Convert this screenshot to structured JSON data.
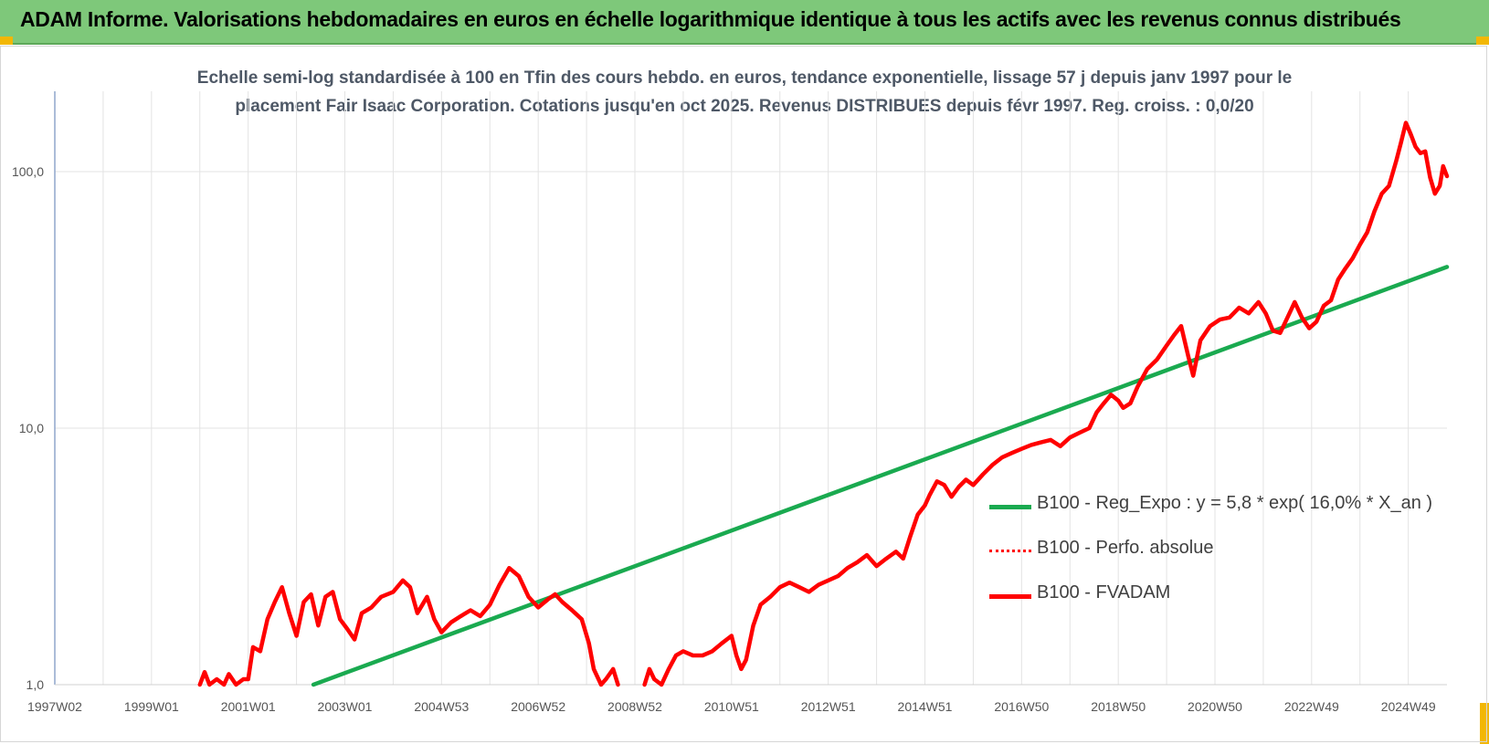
{
  "header": {
    "banner_title": "ADAM Informe. Valorisations hebdomadaires en euros en échelle logarithmique identique à tous les actifs avec les revenus connus distribués",
    "banner_color": "#7ec87a",
    "corner_color": "#f2b705"
  },
  "chart_data": {
    "type": "line",
    "title": "Echelle semi-log standardisée à 100 en Tfin des cours hebdo. en euros, tendance exponentielle, lissage 57 j depuis janv 1997 pour le placement Fair Isaac Corporation. Cotations jusqu'en oct 2025. Revenus DISTRIBUES depuis févr 1997. Reg. croiss. : 0,0/20",
    "title_lines": [
      "Echelle semi-log standardisée à 100 en Tfin des cours hebdo. en euros, tendance exponentielle, lissage 57 j depuis janv 1997 pour le",
      "placement Fair Isaac Corporation. Cotations jusqu'en oct 2025. Revenus DISTRIBUES depuis févr 1997. Reg. croiss. : 0,0/20"
    ],
    "xlabel": "",
    "ylabel": "",
    "y_scale": "log",
    "ylim": [
      1,
      190
    ],
    "xlim": [
      1997.0,
      2025.8
    ],
    "grid": true,
    "legend_position": "right-middle",
    "x_ticks": [
      {
        "label": "1997W02",
        "x": 1997.0
      },
      {
        "label": "1999W01",
        "x": 1999.0
      },
      {
        "label": "2001W01",
        "x": 2001.0
      },
      {
        "label": "2003W01",
        "x": 2003.0
      },
      {
        "label": "2004W53",
        "x": 2005.0
      },
      {
        "label": "2006W52",
        "x": 2007.0
      },
      {
        "label": "2008W52",
        "x": 2009.0
      },
      {
        "label": "2010W51",
        "x": 2011.0
      },
      {
        "label": "2012W51",
        "x": 2013.0
      },
      {
        "label": "2014W51",
        "x": 2015.0
      },
      {
        "label": "2016W50",
        "x": 2017.0
      },
      {
        "label": "2018W50",
        "x": 2019.0
      },
      {
        "label": "2020W50",
        "x": 2021.0
      },
      {
        "label": "2022W49",
        "x": 2023.0
      },
      {
        "label": "2024W49",
        "x": 2025.0
      }
    ],
    "y_ticks": [
      {
        "label": "1,0",
        "y": 1
      },
      {
        "label": "10,0",
        "y": 10
      },
      {
        "label": "100,0",
        "y": 100
      }
    ],
    "series": [
      {
        "name": "B100 - Reg_Expo : y = 5,8 * exp( 16,0% *  X_an )",
        "color": "#1aaa50",
        "style": "solid",
        "points": [
          [
            2002.35,
            1.0
          ],
          [
            2025.8,
            42.5
          ]
        ]
      },
      {
        "name": "B100 - Perfo. absolue",
        "color": "#ff0000",
        "style": "dotted",
        "points": []
      },
      {
        "name": "B100 - FVADAM",
        "color": "#ff0000",
        "style": "solid",
        "segments": [
          [
            [
              2000.0,
              1.0
            ],
            [
              2000.1,
              1.12
            ],
            [
              2000.2,
              1.0
            ],
            [
              2000.35,
              1.05
            ],
            [
              2000.5,
              1.0
            ],
            [
              2000.6,
              1.1
            ],
            [
              2000.75,
              1.0
            ],
            [
              2000.9,
              1.05
            ],
            [
              2001.0,
              1.05
            ],
            [
              2001.1,
              1.4
            ],
            [
              2001.25,
              1.35
            ],
            [
              2001.4,
              1.8
            ],
            [
              2001.55,
              2.1
            ],
            [
              2001.7,
              2.4
            ],
            [
              2001.85,
              1.9
            ],
            [
              2002.0,
              1.55
            ],
            [
              2002.15,
              2.1
            ],
            [
              2002.3,
              2.25
            ],
            [
              2002.45,
              1.7
            ],
            [
              2002.6,
              2.2
            ],
            [
              2002.75,
              2.3
            ],
            [
              2002.9,
              1.8
            ],
            [
              2003.05,
              1.65
            ],
            [
              2003.2,
              1.5
            ],
            [
              2003.35,
              1.9
            ],
            [
              2003.55,
              2.0
            ],
            [
              2003.75,
              2.2
            ],
            [
              2004.0,
              2.3
            ],
            [
              2004.2,
              2.55
            ],
            [
              2004.35,
              2.4
            ],
            [
              2004.5,
              1.9
            ],
            [
              2004.7,
              2.2
            ],
            [
              2004.85,
              1.8
            ],
            [
              2005.0,
              1.6
            ],
            [
              2005.2,
              1.75
            ],
            [
              2005.4,
              1.85
            ],
            [
              2005.6,
              1.95
            ],
            [
              2005.8,
              1.85
            ],
            [
              2006.0,
              2.05
            ],
            [
              2006.2,
              2.45
            ],
            [
              2006.4,
              2.85
            ],
            [
              2006.6,
              2.65
            ],
            [
              2006.8,
              2.2
            ],
            [
              2007.0,
              2.0
            ],
            [
              2007.2,
              2.15
            ],
            [
              2007.35,
              2.25
            ],
            [
              2007.5,
              2.1
            ],
            [
              2007.7,
              1.95
            ],
            [
              2007.9,
              1.8
            ],
            [
              2008.05,
              1.45
            ],
            [
              2008.15,
              1.15
            ],
            [
              2008.3,
              1.0
            ],
            [
              2008.4,
              1.05
            ],
            [
              2008.55,
              1.15
            ],
            [
              2008.65,
              1.0
            ]
          ],
          [
            [
              2009.2,
              1.0
            ],
            [
              2009.3,
              1.15
            ],
            [
              2009.4,
              1.05
            ],
            [
              2009.55,
              1.0
            ],
            [
              2009.7,
              1.15
            ],
            [
              2009.85,
              1.3
            ],
            [
              2010.0,
              1.35
            ],
            [
              2010.2,
              1.3
            ],
            [
              2010.4,
              1.3
            ],
            [
              2010.6,
              1.35
            ],
            [
              2010.8,
              1.45
            ],
            [
              2011.0,
              1.55
            ],
            [
              2011.1,
              1.3
            ],
            [
              2011.2,
              1.15
            ],
            [
              2011.3,
              1.25
            ],
            [
              2011.45,
              1.7
            ],
            [
              2011.6,
              2.05
            ],
            [
              2011.8,
              2.2
            ],
            [
              2012.0,
              2.4
            ],
            [
              2012.2,
              2.5
            ],
            [
              2012.4,
              2.4
            ],
            [
              2012.6,
              2.3
            ],
            [
              2012.8,
              2.45
            ],
            [
              2013.0,
              2.55
            ],
            [
              2013.2,
              2.65
            ],
            [
              2013.4,
              2.85
            ],
            [
              2013.6,
              3.0
            ],
            [
              2013.8,
              3.2
            ],
            [
              2014.0,
              2.9
            ],
            [
              2014.2,
              3.1
            ],
            [
              2014.4,
              3.3
            ],
            [
              2014.55,
              3.1
            ],
            [
              2014.7,
              3.8
            ],
            [
              2014.85,
              4.6
            ],
            [
              2015.0,
              5.0
            ],
            [
              2015.1,
              5.5
            ],
            [
              2015.25,
              6.2
            ],
            [
              2015.4,
              6.0
            ],
            [
              2015.55,
              5.4
            ],
            [
              2015.7,
              5.9
            ],
            [
              2015.85,
              6.3
            ],
            [
              2016.0,
              6.0
            ],
            [
              2016.2,
              6.6
            ],
            [
              2016.4,
              7.2
            ],
            [
              2016.6,
              7.7
            ],
            [
              2016.8,
              8.0
            ],
            [
              2017.0,
              8.3
            ],
            [
              2017.2,
              8.6
            ],
            [
              2017.4,
              8.8
            ],
            [
              2017.6,
              9.0
            ],
            [
              2017.8,
              8.5
            ],
            [
              2018.0,
              9.2
            ],
            [
              2018.2,
              9.6
            ],
            [
              2018.4,
              10.0
            ],
            [
              2018.55,
              11.5
            ],
            [
              2018.7,
              12.5
            ],
            [
              2018.85,
              13.5
            ],
            [
              2019.0,
              12.8
            ],
            [
              2019.1,
              12.0
            ],
            [
              2019.25,
              12.5
            ],
            [
              2019.4,
              14.5
            ],
            [
              2019.6,
              17.0
            ],
            [
              2019.8,
              18.5
            ],
            [
              2020.0,
              21.0
            ],
            [
              2020.15,
              23.0
            ],
            [
              2020.3,
              25.0
            ],
            [
              2020.45,
              19.0
            ],
            [
              2020.55,
              16.0
            ],
            [
              2020.7,
              22.0
            ],
            [
              2020.9,
              25.0
            ],
            [
              2021.1,
              26.5
            ],
            [
              2021.3,
              27.0
            ],
            [
              2021.5,
              29.5
            ],
            [
              2021.7,
              28.0
            ],
            [
              2021.9,
              31.0
            ],
            [
              2022.05,
              28.0
            ],
            [
              2022.2,
              24.0
            ],
            [
              2022.35,
              23.5
            ],
            [
              2022.5,
              27.0
            ],
            [
              2022.65,
              31.0
            ],
            [
              2022.8,
              27.0
            ],
            [
              2022.95,
              24.5
            ],
            [
              2023.1,
              26.0
            ],
            [
              2023.25,
              30.0
            ],
            [
              2023.4,
              31.5
            ],
            [
              2023.55,
              38.0
            ],
            [
              2023.7,
              42.0
            ],
            [
              2023.85,
              46.0
            ],
            [
              2024.0,
              52.0
            ],
            [
              2024.15,
              58.0
            ],
            [
              2024.3,
              70.0
            ],
            [
              2024.45,
              82.0
            ],
            [
              2024.6,
              88.0
            ],
            [
              2024.75,
              110.0
            ],
            [
              2024.85,
              130.0
            ],
            [
              2024.95,
              155.0
            ],
            [
              2025.05,
              140.0
            ],
            [
              2025.15,
              125.0
            ],
            [
              2025.25,
              118.0
            ],
            [
              2025.35,
              120.0
            ],
            [
              2025.45,
              95.0
            ],
            [
              2025.55,
              82.0
            ],
            [
              2025.65,
              88.0
            ],
            [
              2025.72,
              105.0
            ],
            [
              2025.8,
              96.0
            ]
          ]
        ]
      }
    ]
  }
}
